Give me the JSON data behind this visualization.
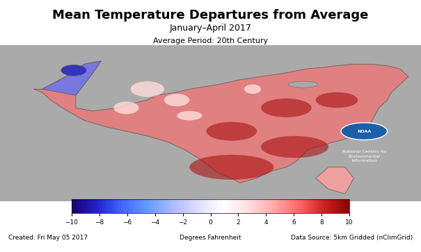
{
  "title": "Mean Temperature Departures from Average",
  "subtitle": "January–April 2017",
  "subtitle2": "Average Period: 20th Century",
  "colorbar_label": "Degrees Fahrenheit",
  "colorbar_ticks": [
    -10,
    -8,
    -6,
    -4,
    -2,
    0,
    2,
    4,
    6,
    8,
    10
  ],
  "colorbar_vmin": -10,
  "colorbar_vmax": 10,
  "footer_left": "Created: Fri May 05 2017",
  "footer_center": "Degrees Fahrenheit",
  "footer_right": "Data Source: 5km Gridded (nClimGrid)",
  "bg_color": "#ffffff",
  "map_bg_color": "#aaaaaa",
  "noaa_text": "National Centers for\nEnvironmental\nInformation",
  "title_fontsize": 13,
  "subtitle_fontsize": 9,
  "subtitle2_fontsize": 8,
  "footer_fontsize": 6.5,
  "colorbar_colors": [
    "#1a006e",
    "#2222cc",
    "#4466ff",
    "#6699ff",
    "#aabbff",
    "#ddddff",
    "#ffffff",
    "#ffdddd",
    "#ffaaaa",
    "#ff6666",
    "#cc2222",
    "#8b0000"
  ]
}
